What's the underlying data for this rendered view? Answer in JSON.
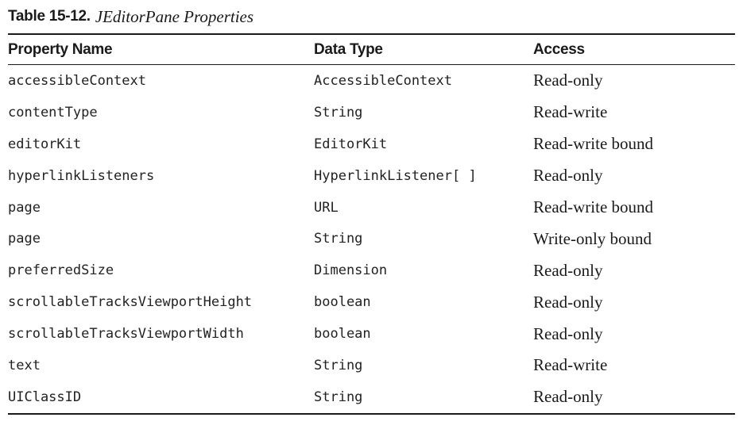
{
  "caption": {
    "label": "Table 15-12.",
    "title": "JEditorPane Properties"
  },
  "columns": [
    "Property Name",
    "Data Type",
    "Access"
  ],
  "rows": [
    {
      "name": "accessibleContext",
      "type": "AccessibleContext",
      "access": "Read-only"
    },
    {
      "name": "contentType",
      "type": "String",
      "access": "Read-write"
    },
    {
      "name": "editorKit",
      "type": "EditorKit",
      "access": "Read-write bound"
    },
    {
      "name": "hyperlinkListeners",
      "type": "HyperlinkListener[ ]",
      "access": "Read-only"
    },
    {
      "name": "page",
      "type": "URL",
      "access": "Read-write bound"
    },
    {
      "name": "page",
      "type": "String",
      "access": "Write-only bound"
    },
    {
      "name": "preferredSize",
      "type": "Dimension",
      "access": "Read-only"
    },
    {
      "name": "scrollableTracksViewportHeight",
      "type": "boolean",
      "access": "Read-only"
    },
    {
      "name": "scrollableTracksViewportWidth",
      "type": "boolean",
      "access": "Read-only"
    },
    {
      "name": "text",
      "type": "String",
      "access": "Read-write"
    },
    {
      "name": "UIClassID",
      "type": "String",
      "access": "Read-only"
    }
  ]
}
